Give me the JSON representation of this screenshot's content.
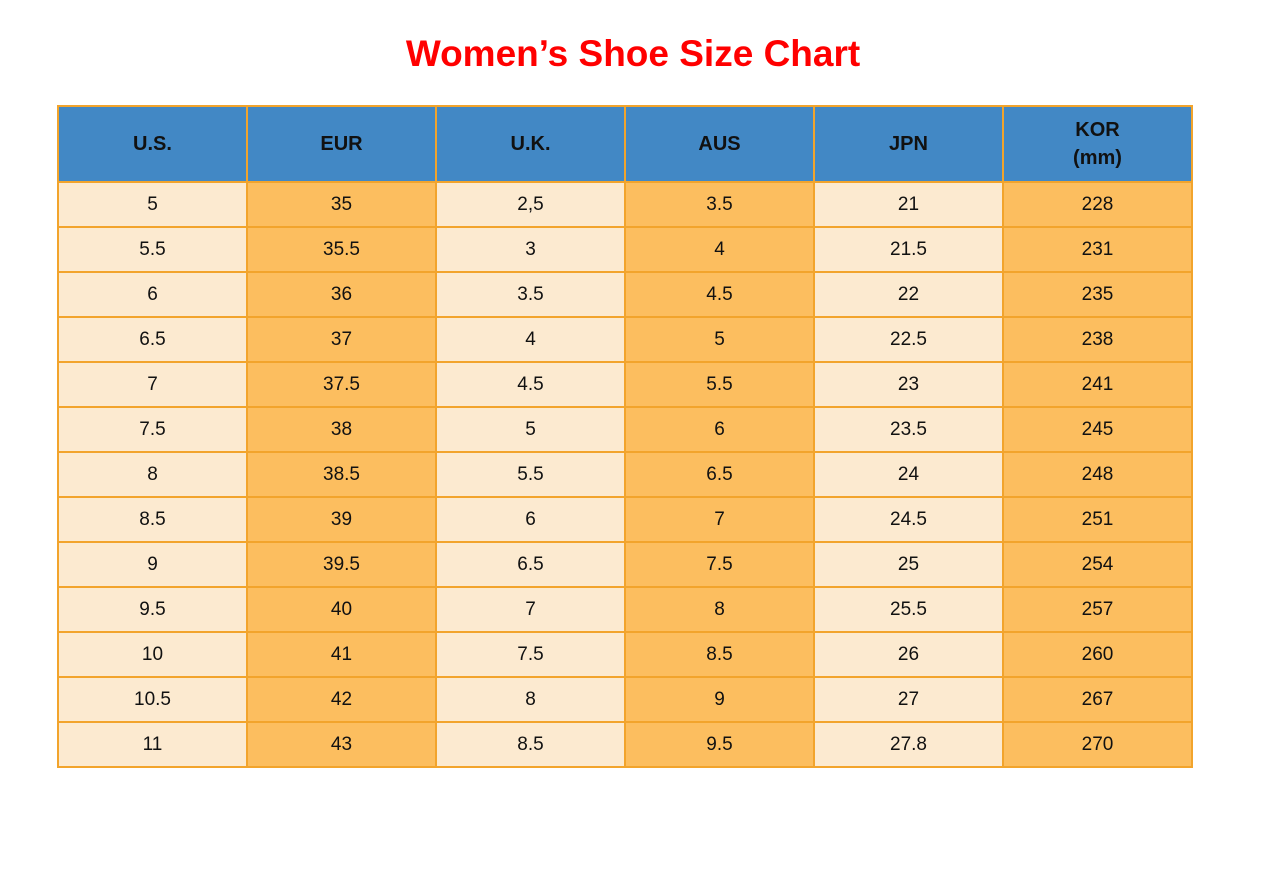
{
  "page": {
    "title": "Women’s Shoe Size Chart"
  },
  "colors": {
    "title": "#FF0000",
    "header_bg": "#4288C5",
    "column_light": "#FCEAD0",
    "column_dark": "#FCBE5F",
    "border": "#F2A42C",
    "text": "#111111"
  },
  "chart_data": {
    "type": "table",
    "title": "Women’s Shoe Size Chart",
    "columns": [
      {
        "label": "U.S."
      },
      {
        "label": "EUR"
      },
      {
        "label": "U.K."
      },
      {
        "label": "AUS"
      },
      {
        "label": "JPN"
      },
      {
        "label": "KOR",
        "sublabel": "(mm)"
      }
    ],
    "rows": [
      [
        "5",
        "35",
        "2,5",
        "3.5",
        "21",
        "228"
      ],
      [
        "5.5",
        "35.5",
        "3",
        "4",
        "21.5",
        "231"
      ],
      [
        "6",
        "36",
        "3.5",
        "4.5",
        "22",
        "235"
      ],
      [
        "6.5",
        "37",
        "4",
        "5",
        "22.5",
        "238"
      ],
      [
        "7",
        "37.5",
        "4.5",
        "5.5",
        "23",
        "241"
      ],
      [
        "7.5",
        "38",
        "5",
        "6",
        "23.5",
        "245"
      ],
      [
        "8",
        "38.5",
        "5.5",
        "6.5",
        "24",
        "248"
      ],
      [
        "8.5",
        "39",
        "6",
        "7",
        "24.5",
        "251"
      ],
      [
        "9",
        "39.5",
        "6.5",
        "7.5",
        "25",
        "254"
      ],
      [
        "9.5",
        "40",
        "7",
        "8",
        "25.5",
        "257"
      ],
      [
        "10",
        "41",
        "7.5",
        "8.5",
        "26",
        "260"
      ],
      [
        "10.5",
        "42",
        "8",
        "9",
        "27",
        "267"
      ],
      [
        "11",
        "43",
        "8.5",
        "9.5",
        "27.8",
        "270"
      ]
    ]
  }
}
